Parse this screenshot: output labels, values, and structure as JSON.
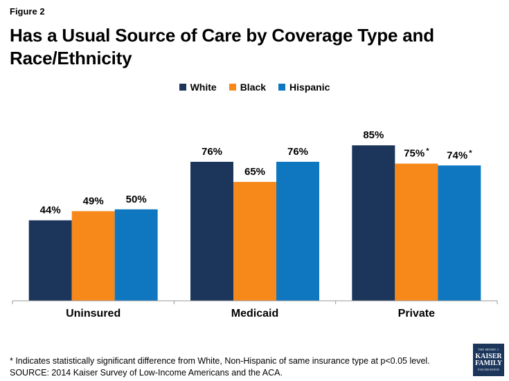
{
  "figure_label": "Figure 2",
  "title": "Has a Usual Source of Care by Coverage Type and Race/Ethnicity",
  "colors": {
    "White": "#1b355b",
    "Black": "#f7891b",
    "Hispanic": "#0f77c0",
    "axis": "#999999"
  },
  "chart_data": {
    "type": "bar",
    "title": "Has a Usual Source of Care by Coverage Type and Race/Ethnicity",
    "xlabel": "",
    "ylabel": "",
    "ylim": [
      0,
      100
    ],
    "categories": [
      "Uninsured",
      "Medicaid",
      "Private"
    ],
    "series": [
      {
        "name": "White",
        "values": [
          44,
          76,
          85
        ],
        "labels": [
          "44%",
          "76%",
          "85%"
        ],
        "significant": [
          false,
          false,
          false
        ]
      },
      {
        "name": "Black",
        "values": [
          49,
          65,
          75
        ],
        "labels": [
          "49%",
          "65%",
          "75%"
        ],
        "significant": [
          false,
          false,
          true
        ]
      },
      {
        "name": "Hispanic",
        "values": [
          50,
          76,
          74
        ],
        "labels": [
          "50%",
          "76%",
          "74%"
        ],
        "significant": [
          false,
          false,
          true
        ]
      }
    ],
    "significance_marker": "*",
    "legend_position": "top"
  },
  "footnote": {
    "line1": "* Indicates statistically significant difference from White, Non-Hispanic of same insurance type at p<0.05 level.",
    "line2": "SOURCE: 2014 Kaiser Survey of Low-Income Americans and the ACA."
  },
  "logo": {
    "line1": "THE HENRY J.",
    "line2": "KAISER",
    "line3": "FAMILY",
    "line4": "FOUNDATION"
  }
}
